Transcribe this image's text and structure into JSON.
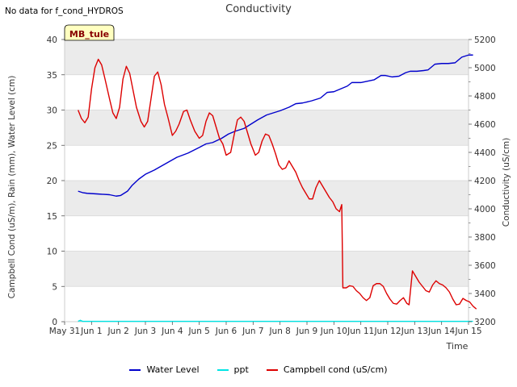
{
  "no_data_note": "No data for f_cond_HYDROS",
  "badge_label": "MB_tule",
  "chart_data": {
    "type": "line",
    "title": "Conductivity",
    "xlabel": "Time",
    "ylabel_left": "Campbell Cond (uS/m), Rain (mm), Water Level (cm)",
    "ylabel_right": "Conductivity (uS/cm)",
    "x_ticks": [
      "May 31",
      "Jun 1",
      "Jun 2",
      "Jun 3",
      "Jun 4",
      "Jun 5",
      "Jun 6",
      "Jun 7",
      "Jun 8",
      "Jun 9",
      "Jun 10",
      "Jun 11",
      "Jun 12",
      "Jun 13",
      "Jun 14",
      "Jun 15"
    ],
    "xlim_days": [
      0,
      15
    ],
    "ylim_left": [
      0,
      40
    ],
    "yticks_left": [
      "0",
      "5",
      "10",
      "15",
      "20",
      "25",
      "30",
      "35",
      "40"
    ],
    "ylim_right": [
      3200,
      5200
    ],
    "yticks_right": [
      "3200",
      "3400",
      "3600",
      "3800",
      "4000",
      "4200",
      "4400",
      "4600",
      "4800",
      "5000",
      "5200"
    ],
    "grid": true,
    "legend_position": "bottom",
    "colors": {
      "water_level": "#0000cc",
      "ppt": "#00e5e5",
      "campbell": "#dd0000",
      "band": "#ebebeb"
    },
    "series": [
      {
        "name": "Water Level",
        "axis": "left",
        "color": "#0000cc",
        "points": [
          [
            0.6,
            18.5
          ],
          [
            0.8,
            18.3
          ],
          [
            1.0,
            18.2
          ],
          [
            1.5,
            18.1
          ],
          [
            2.0,
            18.0
          ],
          [
            2.3,
            17.8
          ],
          [
            2.5,
            17.9
          ],
          [
            2.8,
            18.5
          ],
          [
            3.0,
            19.3
          ],
          [
            3.3,
            20.2
          ],
          [
            3.6,
            20.9
          ],
          [
            4.0,
            21.5
          ],
          [
            4.5,
            22.4
          ],
          [
            5.0,
            23.3
          ],
          [
            5.5,
            23.9
          ],
          [
            6.0,
            24.7
          ],
          [
            6.3,
            25.2
          ],
          [
            6.6,
            25.4
          ],
          [
            7.0,
            26.0
          ],
          [
            7.3,
            26.6
          ],
          [
            7.6,
            27.0
          ],
          [
            8.0,
            27.4
          ],
          [
            8.3,
            28.0
          ],
          [
            8.6,
            28.6
          ],
          [
            9.0,
            29.3
          ],
          [
            9.3,
            29.6
          ],
          [
            9.6,
            29.9
          ],
          [
            10.0,
            30.4
          ],
          [
            10.3,
            30.9
          ],
          [
            10.6,
            31.0
          ],
          [
            11.0,
            31.3
          ],
          [
            11.4,
            31.7
          ],
          [
            11.7,
            32.5
          ],
          [
            12.0,
            32.6
          ],
          [
            12.3,
            33.0
          ],
          [
            12.6,
            33.4
          ],
          [
            12.8,
            33.9
          ],
          [
            13.2,
            33.9
          ],
          [
            13.5,
            34.1
          ],
          [
            13.8,
            34.3
          ],
          [
            14.1,
            34.9
          ],
          [
            14.3,
            34.9
          ],
          [
            14.6,
            34.7
          ],
          [
            14.9,
            34.8
          ],
          [
            15.2,
            35.3
          ],
          [
            15.4,
            35.5
          ],
          [
            15.7,
            35.5
          ],
          [
            16.0,
            35.6
          ],
          [
            16.2,
            35.7
          ],
          [
            16.5,
            36.5
          ],
          [
            16.8,
            36.6
          ],
          [
            17.1,
            36.6
          ],
          [
            17.4,
            36.7
          ],
          [
            17.7,
            37.5
          ],
          [
            18.0,
            37.8
          ],
          [
            18.2,
            37.8
          ]
        ]
      },
      {
        "name": "ppt",
        "axis": "left",
        "color": "#00e5e5",
        "points": [
          [
            0.6,
            0.05
          ],
          [
            0.7,
            0.2
          ],
          [
            0.8,
            0.05
          ],
          [
            18.2,
            0.05
          ]
        ]
      },
      {
        "name": "Campbell cond (uS/cm)",
        "axis": "right",
        "color": "#dd0000",
        "points": [
          [
            0.6,
            4700
          ],
          [
            0.75,
            4640
          ],
          [
            0.9,
            4610
          ],
          [
            1.05,
            4650
          ],
          [
            1.2,
            4850
          ],
          [
            1.35,
            5000
          ],
          [
            1.5,
            5060
          ],
          [
            1.65,
            5020
          ],
          [
            1.8,
            4920
          ],
          [
            2.0,
            4780
          ],
          [
            2.15,
            4680
          ],
          [
            2.3,
            4640
          ],
          [
            2.45,
            4720
          ],
          [
            2.6,
            4920
          ],
          [
            2.75,
            5010
          ],
          [
            2.9,
            4960
          ],
          [
            3.05,
            4840
          ],
          [
            3.2,
            4720
          ],
          [
            3.4,
            4620
          ],
          [
            3.55,
            4580
          ],
          [
            3.7,
            4620
          ],
          [
            3.85,
            4780
          ],
          [
            4.0,
            4940
          ],
          [
            4.15,
            4970
          ],
          [
            4.3,
            4880
          ],
          [
            4.45,
            4740
          ],
          [
            4.6,
            4650
          ],
          [
            4.8,
            4520
          ],
          [
            4.95,
            4550
          ],
          [
            5.1,
            4600
          ],
          [
            5.3,
            4690
          ],
          [
            5.45,
            4700
          ],
          [
            5.6,
            4630
          ],
          [
            5.8,
            4550
          ],
          [
            6.0,
            4500
          ],
          [
            6.15,
            4520
          ],
          [
            6.3,
            4620
          ],
          [
            6.45,
            4680
          ],
          [
            6.6,
            4660
          ],
          [
            6.75,
            4580
          ],
          [
            6.9,
            4500
          ],
          [
            7.05,
            4460
          ],
          [
            7.2,
            4380
          ],
          [
            7.4,
            4400
          ],
          [
            7.55,
            4520
          ],
          [
            7.7,
            4630
          ],
          [
            7.85,
            4650
          ],
          [
            8.0,
            4620
          ],
          [
            8.15,
            4540
          ],
          [
            8.3,
            4460
          ],
          [
            8.5,
            4380
          ],
          [
            8.65,
            4400
          ],
          [
            8.8,
            4480
          ],
          [
            8.95,
            4530
          ],
          [
            9.1,
            4520
          ],
          [
            9.25,
            4460
          ],
          [
            9.4,
            4390
          ],
          [
            9.55,
            4310
          ],
          [
            9.7,
            4280
          ],
          [
            9.85,
            4290
          ],
          [
            10.0,
            4340
          ],
          [
            10.15,
            4300
          ],
          [
            10.3,
            4260
          ],
          [
            10.45,
            4200
          ],
          [
            10.6,
            4150
          ],
          [
            10.75,
            4110
          ],
          [
            10.9,
            4070
          ],
          [
            11.05,
            4070
          ],
          [
            11.2,
            4150
          ],
          [
            11.35,
            4200
          ],
          [
            11.5,
            4160
          ],
          [
            11.65,
            4120
          ],
          [
            11.8,
            4080
          ],
          [
            11.95,
            4050
          ],
          [
            12.1,
            4000
          ],
          [
            12.25,
            3980
          ],
          [
            12.35,
            4030
          ],
          [
            12.4,
            3440
          ],
          [
            12.55,
            3440
          ],
          [
            12.7,
            3455
          ],
          [
            12.85,
            3450
          ],
          [
            13.0,
            3420
          ],
          [
            13.15,
            3400
          ],
          [
            13.3,
            3370
          ],
          [
            13.45,
            3350
          ],
          [
            13.6,
            3370
          ],
          [
            13.75,
            3455
          ],
          [
            13.9,
            3470
          ],
          [
            14.05,
            3470
          ],
          [
            14.2,
            3450
          ],
          [
            14.35,
            3400
          ],
          [
            14.5,
            3360
          ],
          [
            14.65,
            3330
          ],
          [
            14.8,
            3325
          ],
          [
            14.95,
            3350
          ],
          [
            15.1,
            3370
          ],
          [
            15.25,
            3330
          ],
          [
            15.35,
            3320
          ],
          [
            15.5,
            3560
          ],
          [
            15.65,
            3520
          ],
          [
            15.8,
            3480
          ],
          [
            15.95,
            3450
          ],
          [
            16.1,
            3420
          ],
          [
            16.25,
            3410
          ],
          [
            16.4,
            3460
          ],
          [
            16.55,
            3490
          ],
          [
            16.7,
            3470
          ],
          [
            16.85,
            3460
          ],
          [
            17.0,
            3440
          ],
          [
            17.15,
            3410
          ],
          [
            17.3,
            3360
          ],
          [
            17.45,
            3320
          ],
          [
            17.6,
            3325
          ],
          [
            17.75,
            3365
          ],
          [
            17.9,
            3350
          ],
          [
            18.05,
            3340
          ],
          [
            18.2,
            3310
          ],
          [
            18.35,
            3290
          ]
        ]
      }
    ]
  }
}
